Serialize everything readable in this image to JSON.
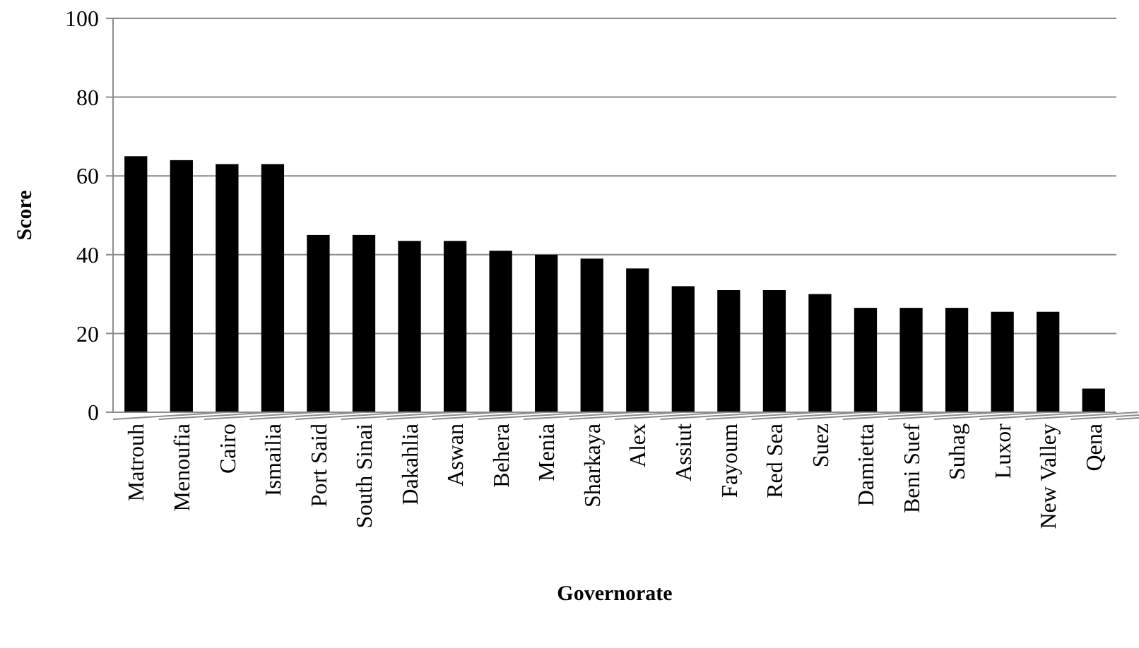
{
  "chart_data": {
    "type": "bar",
    "xlabel": "Governorate",
    "ylabel": "Score",
    "categories": [
      "Matrouh",
      "Menoufia",
      "Cairo",
      "Ismailia",
      "Port Said",
      "South Sinai",
      "Dakahlia",
      "Aswan",
      "Behera",
      "Menia",
      "Sharkaya",
      "Alex",
      "Assiut",
      "Fayoum",
      "Red Sea",
      "Suez",
      "Damietta",
      "Beni Suef",
      "Suhag",
      "Luxor",
      "New Valley",
      "Qena"
    ],
    "values": [
      65,
      64,
      63,
      63,
      45,
      45,
      43.5,
      43.5,
      41,
      40,
      39,
      36.5,
      32,
      31,
      31,
      30,
      26.5,
      26.5,
      26.5,
      25.5,
      25.5,
      6
    ],
    "color": "#000000",
    "ylim": [
      0,
      100
    ],
    "yticks": [
      0,
      20,
      40,
      60,
      80,
      100
    ],
    "grid": "y"
  }
}
